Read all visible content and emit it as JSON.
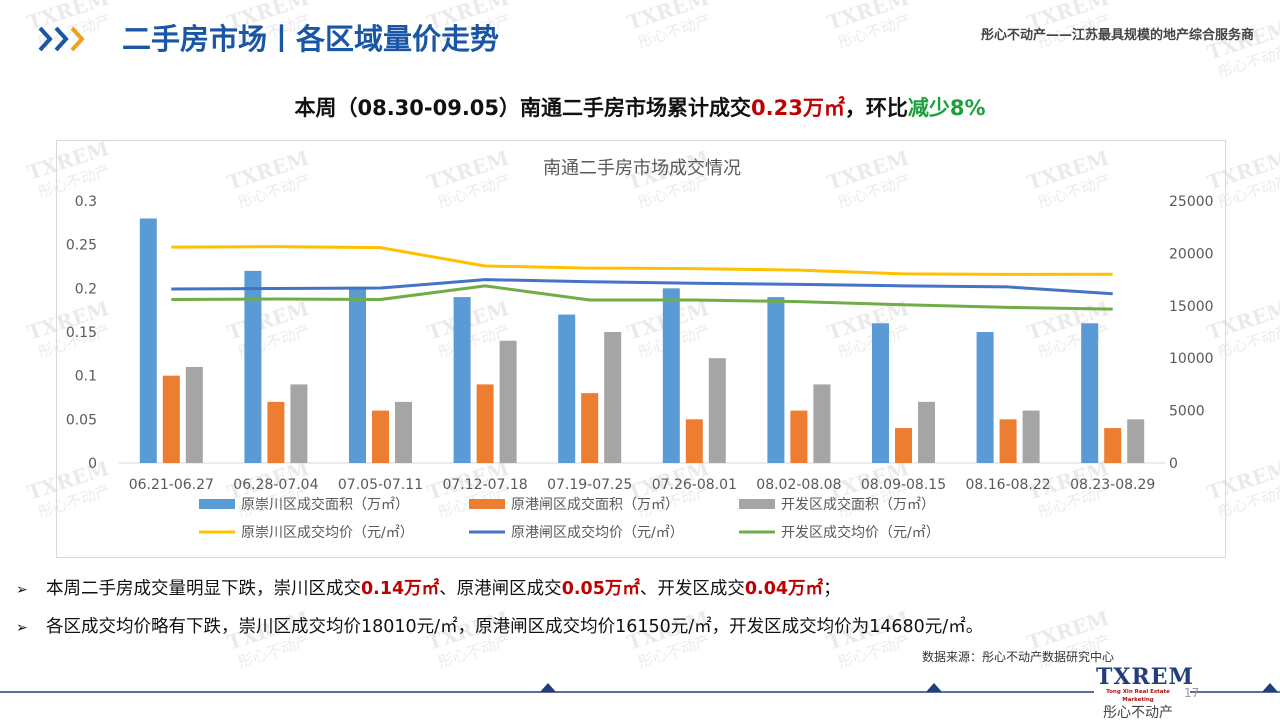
{
  "header": {
    "title": "二手房市场丨各区域量价走势",
    "tagline": "彤心不动产——江苏最具规模的地产综合服务商"
  },
  "headline": {
    "prefix": "本周（08.30-09.05）南通二手房市场累计成交",
    "value": "0.23万㎡",
    "middle": "，环比",
    "change": "减少8%"
  },
  "watermark": {
    "logo": "TXREM",
    "text": "彤心不动产"
  },
  "colors": {
    "accent": "#1a56a6",
    "chongchuan_area": "#5b9bd5",
    "ganggang_area": "#ed7d31",
    "kaifa_area": "#a5a5a5",
    "chongchuan_price": "#ffc000",
    "ganggang_price": "#4472c4",
    "kaifa_price": "#70ad47",
    "up": "#c00000",
    "down": "#1ba03a"
  },
  "chart_data": {
    "type": "bar+line",
    "title": "南通二手房市场成交情况",
    "categories": [
      "06.21-06.27",
      "06.28-07.04",
      "07.05-07.11",
      "07.12-07.18",
      "07.19-07.25",
      "07.26-08.01",
      "08.02-08.08",
      "08.09-08.15",
      "08.16-08.22",
      "08.23-08.29"
    ],
    "y_left": {
      "min": 0,
      "max": 0.3,
      "ticks": [
        "0",
        "0.05",
        "0.1",
        "0.15",
        "0.2",
        "0.25",
        "0.3"
      ]
    },
    "y_right": {
      "min": 0,
      "max": 25000,
      "ticks": [
        "0",
        "5000",
        "10000",
        "15000",
        "20000",
        "25000"
      ]
    },
    "bar_series": [
      {
        "name": "原崇川区成交面积（万㎡）",
        "color": "#5b9bd5",
        "values": [
          0.28,
          0.22,
          0.2,
          0.19,
          0.17,
          0.2,
          0.19,
          0.16,
          0.15,
          0.16
        ]
      },
      {
        "name": "原港闸区成交面积（万㎡）",
        "color": "#ed7d31",
        "values": [
          0.1,
          0.07,
          0.06,
          0.09,
          0.08,
          0.05,
          0.06,
          0.04,
          0.05,
          0.04
        ]
      },
      {
        "name": "开发区成交面积（万㎡）",
        "color": "#a5a5a5",
        "values": [
          0.11,
          0.09,
          0.07,
          0.14,
          0.15,
          0.12,
          0.09,
          0.07,
          0.06,
          0.05
        ]
      }
    ],
    "line_series": [
      {
        "name": "原崇川区成交均价（元/㎡）",
        "color": "#ffc000",
        "values": [
          20600,
          20650,
          20550,
          18800,
          18600,
          18550,
          18400,
          18050,
          18000,
          18010
        ]
      },
      {
        "name": "原港闸区成交均价（元/㎡）",
        "color": "#4472c4",
        "values": [
          16600,
          16650,
          16700,
          17500,
          17300,
          17150,
          17050,
          16900,
          16800,
          16150
        ]
      },
      {
        "name": "开发区成交均价（元/㎡）",
        "color": "#70ad47",
        "values": [
          15600,
          15650,
          15600,
          16900,
          15550,
          15550,
          15400,
          15100,
          14850,
          14680
        ]
      }
    ]
  },
  "bullets": [
    {
      "mark": "➢",
      "t1": "本周二手房成交量明显下跌，崇川区成交",
      "v1": "0.14万㎡",
      "t2": "、原港闸区成交",
      "v2": "0.05万㎡",
      "t3": "、开发区成交",
      "v3": "0.04万㎡",
      "t4": "；"
    },
    {
      "mark": "➢",
      "text": "各区成交均价略有下跌，崇川区成交均价18010元/㎡，原港闸区成交均价16150元/㎡，开发区成交均价为14680元/㎡。"
    }
  ],
  "footer": {
    "source": "数据来源：彤心不动产数据研究中心",
    "brand_logo": "TXREM",
    "brand_en": "Tong Xin Real Estate Marketing",
    "brand_cn": "彤心不动产",
    "page_number": "17"
  }
}
